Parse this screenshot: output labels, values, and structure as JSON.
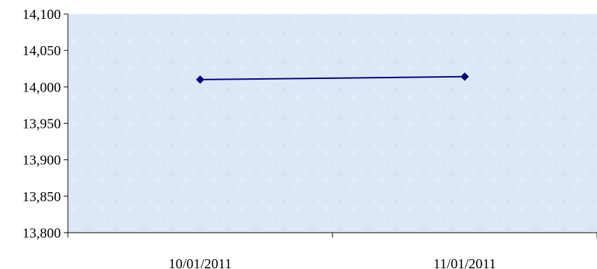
{
  "chart_data": {
    "type": "line",
    "title": "",
    "xlabel": "",
    "ylabel": "",
    "categories": [
      "10/01/2011",
      "11/01/2011"
    ],
    "series": [
      {
        "values": [
          14010,
          14014
        ],
        "color": "#00007F",
        "marker": "diamond"
      }
    ],
    "ylim": [
      13800,
      14100
    ],
    "y_ticks": [
      13800,
      13850,
      13900,
      13950,
      14000,
      14050,
      14100
    ],
    "y_tick_labels": [
      "13,800",
      "13,850",
      "13,900",
      "13,950",
      "14,000",
      "14,050",
      "14,100"
    ],
    "grid": false,
    "legend": "none",
    "plot_background": "#DCE8F6"
  }
}
